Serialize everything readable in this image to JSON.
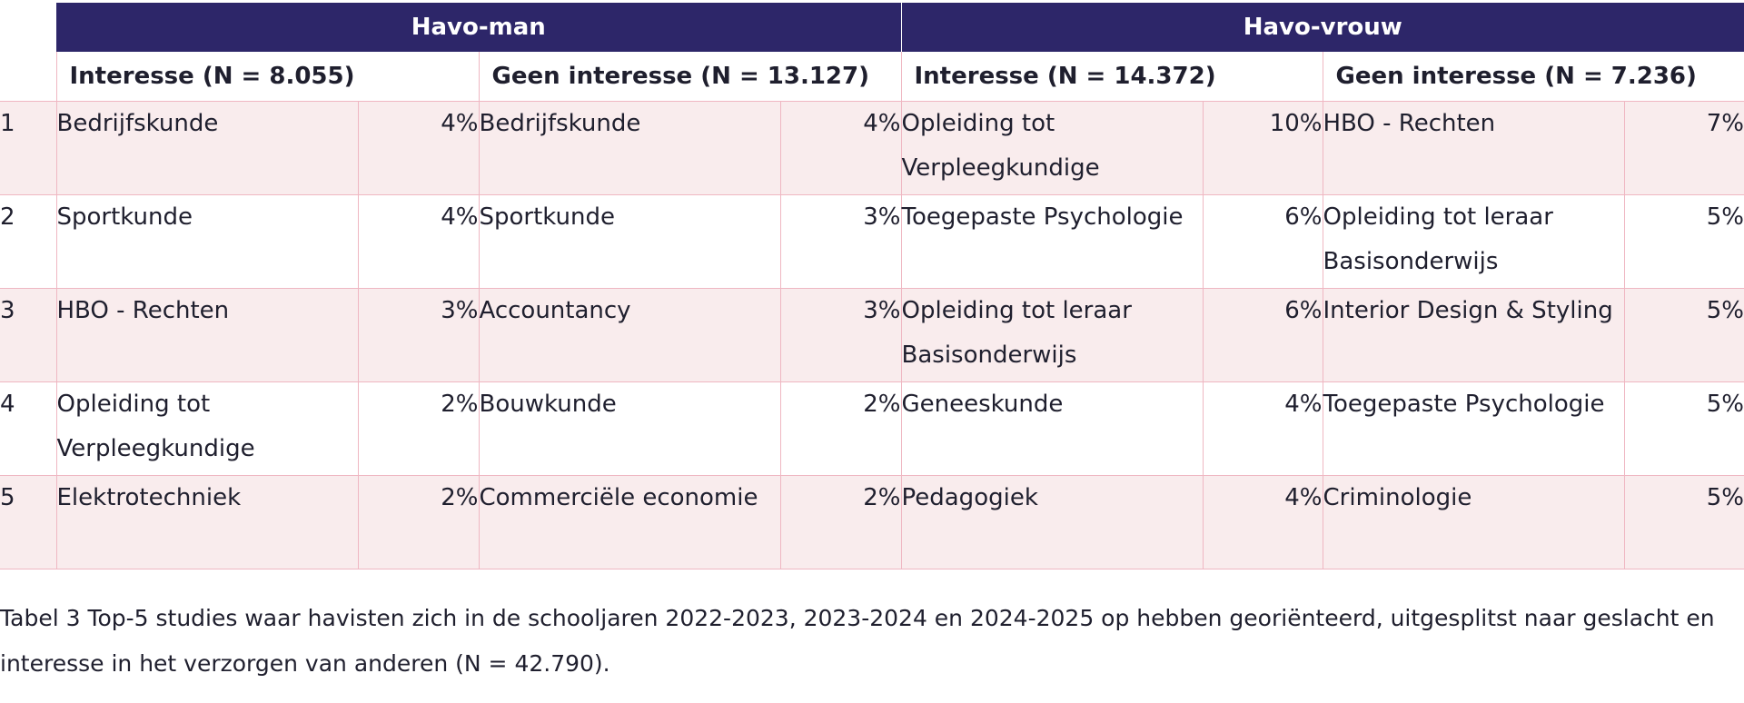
{
  "table": {
    "groups": [
      "Havo-man",
      "Havo-vrouw"
    ],
    "subheaders": [
      "Interesse (N = 8.055)",
      "Geen interesse (N = 13.127)",
      "Interesse (N = 14.372)",
      "Geen interesse (N = 7.236)"
    ],
    "rows": [
      {
        "rank": "1",
        "cells": [
          [
            "Bedrijfskunde",
            "4%"
          ],
          [
            "Bedrijfskunde",
            "4%"
          ],
          [
            "Opleiding tot Verpleegkundige",
            "10%"
          ],
          [
            "HBO - Rechten",
            "7%"
          ]
        ]
      },
      {
        "rank": "2",
        "cells": [
          [
            "Sportkunde",
            "4%"
          ],
          [
            "Sportkunde",
            "3%"
          ],
          [
            "Toegepaste Psychologie",
            "6%"
          ],
          [
            "Opleiding tot leraar Basisonderwijs",
            "5%"
          ]
        ]
      },
      {
        "rank": "3",
        "cells": [
          [
            "HBO - Rechten",
            "3%"
          ],
          [
            "Accountancy",
            "3%"
          ],
          [
            "Opleiding tot leraar Basisonderwijs",
            "6%"
          ],
          [
            "Interior Design & Styling",
            "5%"
          ]
        ]
      },
      {
        "rank": "4",
        "cells": [
          [
            "Opleiding tot Verpleegkundige",
            "2%"
          ],
          [
            "Bouwkunde",
            "2%"
          ],
          [
            "Geneeskunde",
            "4%"
          ],
          [
            "Toegepaste Psychologie",
            "5%"
          ]
        ]
      },
      {
        "rank": "5",
        "cells": [
          [
            "Elektrotechniek",
            "2%"
          ],
          [
            "Commerciële economie",
            "2%"
          ],
          [
            "Pedagogiek",
            "4%"
          ],
          [
            "Criminologie",
            "5%"
          ]
        ]
      }
    ]
  },
  "caption": "Tabel 3 Top-5 studies waar havisten zich in de schooljaren 2022-2023, 2023-2024 en 2024-2025 op hebben georiënteerd, uitgesplitst naar geslacht en interesse in het verzorgen van anderen (N = 42.790)."
}
